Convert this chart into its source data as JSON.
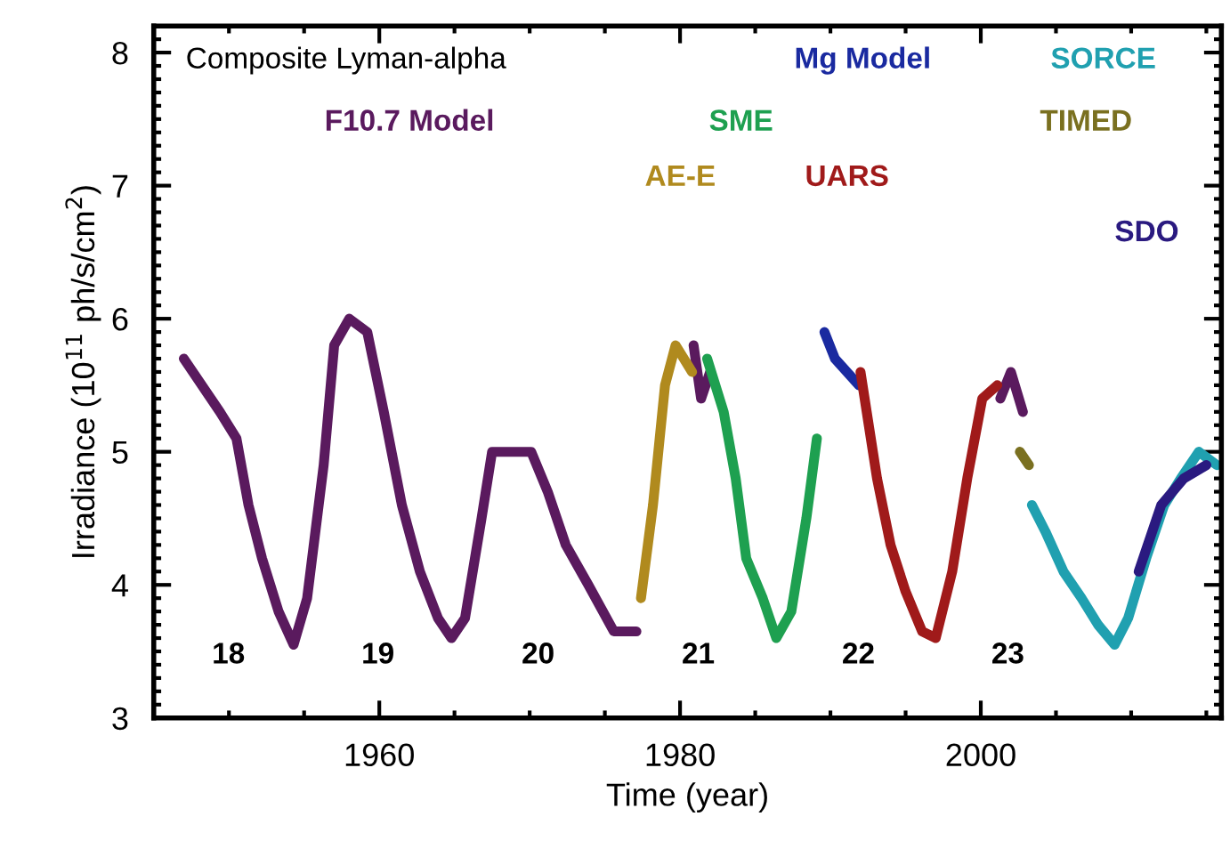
{
  "chart_data": {
    "type": "line",
    "xlabel": "Time (year)",
    "ylabel": "Irradiance (10$^{11}$ ph/s/cm$^{2}$)",
    "xlim": [
      1945,
      2016
    ],
    "xticks": [
      1960,
      1980,
      2000
    ],
    "ylim": [
      3,
      8.2
    ],
    "yticks": [
      3,
      4,
      5,
      6,
      7,
      8
    ],
    "grid": false,
    "legend": "top",
    "annotations": [
      "Composite Lyman-alpha",
      "18",
      "19",
      "20",
      "21",
      "22",
      "23"
    ],
    "series": [
      {
        "name": "F10.7 Model",
        "color": "#5a1a5e",
        "x": [
          1947.0,
          1949.4,
          1950.5,
          1951.3,
          1952.2,
          1953.3,
          1954.3,
          1955.2,
          1956.3,
          1957.0,
          1958.0,
          1959.2,
          1960.3,
          1961.5,
          1962.7,
          1963.9,
          1964.8,
          1965.7,
          1966.8,
          1967.5,
          1968.9,
          1970.1,
          1971.2,
          1972.4,
          1973.9,
          1975.6,
          1977.1,
          1977.5,
          1980.9,
          1981.4,
          1982.0,
          1990.0,
          2001.3,
          2002.0,
          2002.8
        ],
        "values": [
          5.7,
          5.3,
          5.1,
          4.6,
          4.2,
          3.8,
          3.55,
          3.9,
          4.9,
          5.8,
          6.0,
          5.9,
          5.3,
          4.6,
          4.1,
          3.75,
          3.6,
          3.75,
          4.5,
          5.0,
          5.0,
          5.0,
          4.7,
          4.3,
          4.0,
          3.65,
          3.65,
          null,
          5.8,
          5.4,
          5.6,
          null,
          5.4,
          5.6,
          5.3
        ]
      },
      {
        "name": "AE-E",
        "color": "#b08a1e",
        "x": [
          1977.4,
          1978.2,
          1979.0,
          1979.7,
          1980.8
        ],
        "values": [
          3.9,
          4.6,
          5.5,
          5.8,
          5.6
        ]
      },
      {
        "name": "SME",
        "color": "#1ea050",
        "x": [
          1981.8,
          1982.9,
          1983.7,
          1984.4,
          1985.5,
          1986.4,
          1987.4,
          1988.4,
          1989.1
        ],
        "values": [
          5.7,
          5.3,
          4.8,
          4.2,
          3.9,
          3.6,
          3.8,
          4.5,
          5.1
        ]
      },
      {
        "name": "Mg Model",
        "color": "#1a2aa0",
        "x": [
          1989.6,
          1990.3,
          1991.1,
          1991.9
        ],
        "values": [
          5.9,
          5.7,
          5.6,
          5.5
        ]
      },
      {
        "name": "UARS",
        "color": "#a01a1a",
        "x": [
          1992.0,
          1993.1,
          1994.0,
          1995.0,
          1996.1,
          1997.0,
          1998.1,
          1999.1,
          2000.1,
          2001.1
        ],
        "values": [
          5.6,
          4.8,
          4.3,
          3.95,
          3.65,
          3.6,
          4.1,
          4.8,
          5.4,
          5.5
        ]
      },
      {
        "name": "TIMED",
        "color": "#7a7020",
        "x": [
          2002.6,
          2003.2
        ],
        "values": [
          5.0,
          4.9
        ]
      },
      {
        "name": "SORCE",
        "color": "#20a0b0",
        "x": [
          2003.4,
          2004.3,
          2005.5,
          2006.7,
          2007.8,
          2008.9,
          2009.8,
          2011.0,
          2012.2,
          2013.3,
          2014.5,
          2015.7
        ],
        "values": [
          4.6,
          4.4,
          4.1,
          3.9,
          3.7,
          3.55,
          3.75,
          4.2,
          4.6,
          4.8,
          5.0,
          4.9
        ]
      },
      {
        "name": "SDO",
        "color": "#2a1a80",
        "x": [
          2010.5,
          2012.0,
          2013.5,
          2015.0
        ],
        "values": [
          4.1,
          4.6,
          4.8,
          4.9
        ]
      }
    ]
  }
}
